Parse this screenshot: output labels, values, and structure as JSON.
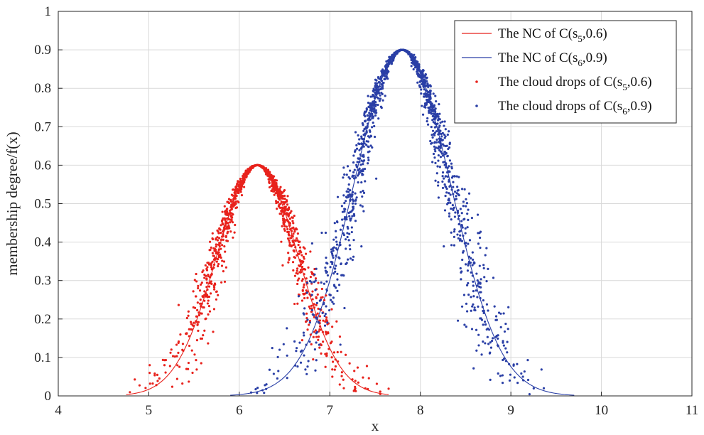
{
  "chart_data": {
    "type": "scatter",
    "title": "",
    "xlabel": "x",
    "ylabel": "membership degree/f(x)",
    "xlim": [
      4,
      11
    ],
    "ylim": [
      0,
      1
    ],
    "xticks": [
      "4",
      "5",
      "6",
      "7",
      "8",
      "9",
      "10",
      "11"
    ],
    "yticks": [
      "0",
      "0.1",
      "0.2",
      "0.3",
      "0.4",
      "0.5",
      "0.6",
      "0.7",
      "0.8",
      "0.9",
      "1"
    ],
    "grid": true,
    "legend_position": "top-right",
    "colors": {
      "red": "#e8221c",
      "blue": "#2a3fa6",
      "grid": "#d9d9d9",
      "axis": "#262626"
    },
    "series": [
      {
        "name": "The NC of C(s5,0.6)",
        "legend": {
          "prefix": "The NC of C(s",
          "sub": "5",
          "suffix": ",0.6)"
        },
        "kind": "line",
        "color": "#e8221c",
        "curve": {
          "Ex": 6.2,
          "En": 0.45,
          "peak": 0.6,
          "x_range": [
            4.75,
            7.65
          ]
        }
      },
      {
        "name": "The NC of C(s6,0.9)",
        "legend": {
          "prefix": "The NC of C(s",
          "sub": "6",
          "suffix": ",0.9)"
        },
        "kind": "line",
        "color": "#2a3fa6",
        "curve": {
          "Ex": 7.8,
          "En": 0.54,
          "peak": 0.9,
          "x_range": [
            5.9,
            9.7
          ]
        }
      },
      {
        "name": "The cloud drops of C(s5,0.6)",
        "legend": {
          "prefix": "The cloud drops of C(s",
          "sub": "5",
          "suffix": ",0.6)"
        },
        "kind": "scatter",
        "color": "#e8221c",
        "cloud": {
          "Ex": 6.2,
          "En": 0.45,
          "He": 0.06,
          "peak": 0.6,
          "n": 1200,
          "x_range": [
            4.72,
            7.75
          ]
        }
      },
      {
        "name": "The cloud drops of C(s6,0.9)",
        "legend": {
          "prefix": "The cloud drops of C(s",
          "sub": "6",
          "suffix": ",0.9)"
        },
        "kind": "scatter",
        "color": "#2a3fa6",
        "cloud": {
          "Ex": 7.8,
          "En": 0.54,
          "He": 0.07,
          "peak": 0.9,
          "n": 1500,
          "x_range": [
            5.5,
            10.2
          ]
        }
      }
    ]
  }
}
